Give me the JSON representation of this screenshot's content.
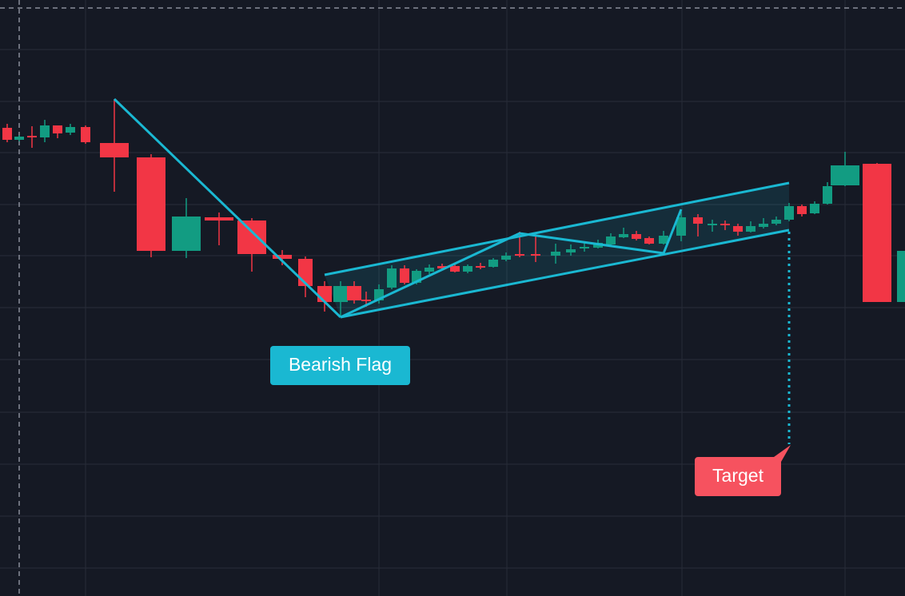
{
  "chart_data": {
    "type": "candlestick",
    "annotations": [
      "Bearish Flag",
      "Target"
    ],
    "up_color": "#129c82",
    "down_color": "#f23645",
    "grid": true,
    "ylim": [
      0,
      74.6
    ],
    "ohlc": [
      [
        58.6,
        59.1,
        56.8,
        57.1
      ],
      [
        57.1,
        57.7,
        56.9,
        57.5
      ],
      [
        57.6,
        58.8,
        56.1,
        57.4
      ],
      [
        57.4,
        59.6,
        56.8,
        58.9
      ],
      [
        58.9,
        58.9,
        57.3,
        57.9
      ],
      [
        58.0,
        59.1,
        57.7,
        58.7
      ],
      [
        58.7,
        58.9,
        56.6,
        56.8
      ],
      [
        56.7,
        62.2,
        50.6,
        54.9
      ],
      [
        54.9,
        55.3,
        42.4,
        43.2
      ],
      [
        43.2,
        49.8,
        42.3,
        47.5
      ],
      [
        47.4,
        48.0,
        43.9,
        47.0
      ],
      [
        47.0,
        47.3,
        40.6,
        42.8
      ],
      [
        42.7,
        43.3,
        41.4,
        42.2
      ],
      [
        42.2,
        42.5,
        37.4,
        38.8
      ],
      [
        38.8,
        39.4,
        35.6,
        36.8
      ],
      [
        36.8,
        39.4,
        35.1,
        38.8
      ],
      [
        38.8,
        39.4,
        36.6,
        37.0
      ],
      [
        37.1,
        38.1,
        36.2,
        36.9
      ],
      [
        37.0,
        39.0,
        36.6,
        38.4
      ],
      [
        38.6,
        41.4,
        38.4,
        41.0
      ],
      [
        41.0,
        41.4,
        39.0,
        39.2
      ],
      [
        39.2,
        40.9,
        39.0,
        40.7
      ],
      [
        40.6,
        41.5,
        40.3,
        41.1
      ],
      [
        41.3,
        41.6,
        40.8,
        41.0
      ],
      [
        41.3,
        41.5,
        40.5,
        40.6
      ],
      [
        40.6,
        41.5,
        40.4,
        41.3
      ],
      [
        41.3,
        41.7,
        40.9,
        41.1
      ],
      [
        41.2,
        42.3,
        41.1,
        42.1
      ],
      [
        42.1,
        43.0,
        41.9,
        42.6
      ],
      [
        42.8,
        45.6,
        42.4,
        42.6
      ],
      [
        42.8,
        45.1,
        41.8,
        42.6
      ],
      [
        42.6,
        44.1,
        41.6,
        43.1
      ],
      [
        43.0,
        44.0,
        42.6,
        43.4
      ],
      [
        43.5,
        44.3,
        43.1,
        43.7
      ],
      [
        43.6,
        44.6,
        43.5,
        44.2
      ],
      [
        44.0,
        45.4,
        43.8,
        45.0
      ],
      [
        44.9,
        46.1,
        44.8,
        45.3
      ],
      [
        45.3,
        45.7,
        44.5,
        44.7
      ],
      [
        44.8,
        45.0,
        44.0,
        44.1
      ],
      [
        44.1,
        45.7,
        44.0,
        45.1
      ],
      [
        45.1,
        48.1,
        44.4,
        47.4
      ],
      [
        47.4,
        47.8,
        45.0,
        46.6
      ],
      [
        46.4,
        47.1,
        45.6,
        46.6
      ],
      [
        46.6,
        47.0,
        45.8,
        46.4
      ],
      [
        46.3,
        46.6,
        45.1,
        45.6
      ],
      [
        45.6,
        46.9,
        45.5,
        46.3
      ],
      [
        46.2,
        47.3,
        46.0,
        46.6
      ],
      [
        46.6,
        47.5,
        46.4,
        47.1
      ],
      [
        47.1,
        49.2,
        46.9,
        48.8
      ],
      [
        48.8,
        49.0,
        47.5,
        47.8
      ],
      [
        47.9,
        49.4,
        47.8,
        49.1
      ],
      [
        49.1,
        51.8,
        49.0,
        51.3
      ],
      [
        51.4,
        55.6,
        51.3,
        53.9
      ],
      [
        54.1,
        54.2,
        36.8,
        36.8
      ],
      [
        36.8,
        43.2,
        36.8,
        43.2
      ]
    ]
  }
}
